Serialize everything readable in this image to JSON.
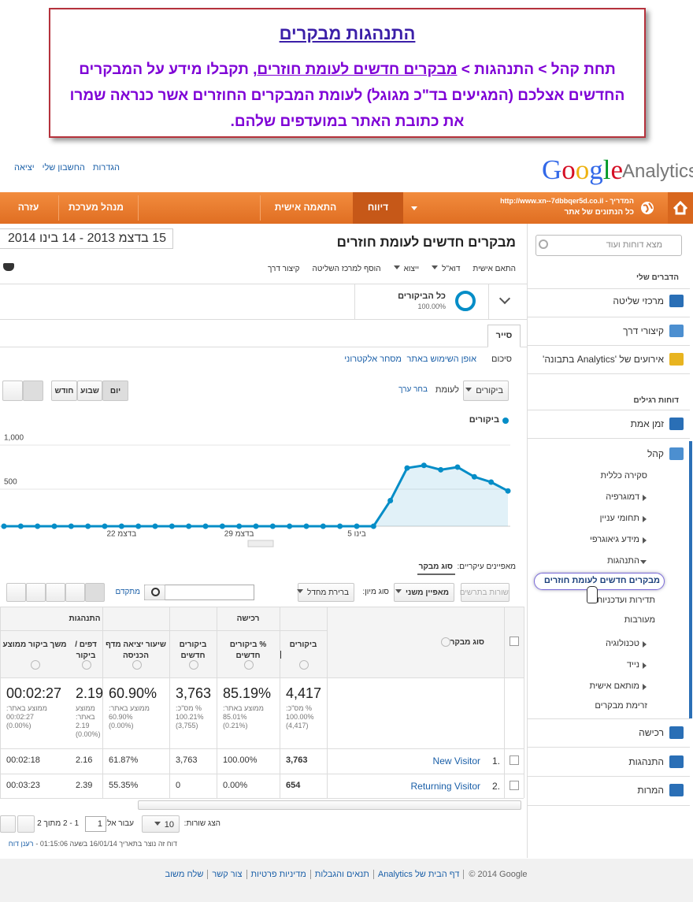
{
  "callout": {
    "title": "התנהגות מבקרים",
    "text_pre": "תחת קהל > התנהגות > ",
    "text_link": "מבקרים חדשים לעומת חוזרים",
    "text_post": ", תקבלו מידע על המבקרים החדשים אצלכם (המגיעים בד\"כ מגוגל) לעומת המבקרים החוזרים אשר כנראה שמרו את כתובת האתר במועדפים שלהם."
  },
  "header": {
    "logo_google": "Google",
    "logo_analytics": "Analytics",
    "links": [
      "הגדרות",
      "החשבון שלי",
      "יציאה"
    ]
  },
  "nav": {
    "site_url": "http://www.xn--7dbbqer5d.co.il - המדריך",
    "site_name": "כל הנתונים של אתר",
    "tabs": [
      "דיווח",
      "התאמה אישית",
      "מנהל מערכת",
      "עזרה"
    ]
  },
  "sidebar": {
    "search_placeholder": "מצא דוחות ועוד",
    "my_stuff_heading": "הדברים שלי",
    "my_stuff": [
      "מרכזי שליטה",
      "קיצורי דרך",
      "אירועים של 'Analytics בתבונה'"
    ],
    "standard_heading": "דוחות רגילים",
    "standard": [
      "זמן אמת",
      "קהל",
      "רכישה",
      "התנהגות",
      "המרות"
    ],
    "audience": [
      "סקירה כללית",
      "דמוגרפיה",
      "תחומי עניין",
      "מידע גיאוגרפי",
      "התנהגות",
      "מבקרים חדשים לעומת חוזרים",
      "תדירות ועדכניות",
      "מעורבות",
      "טכנולוגיה",
      "נייד",
      "מותאם אישית",
      "זרימת מבקרים"
    ]
  },
  "report": {
    "title": "מבקרים חדשים לעומת חוזרים",
    "date_range": "15 בדצמ 2013 - 14 בינו 2014",
    "toolbar": [
      "התאם אישית",
      "דוא\"ל",
      "ייצוא",
      "הוסף למרכז השליטה",
      "קיצור דרך"
    ],
    "segment_name": "כל הביקורים",
    "segment_pct": "100.00%",
    "tab": "סייר",
    "subtabs": [
      "סיכום",
      "אופן השימוש באתר",
      "מסחר אלקטרוני"
    ],
    "metric": "ביקורים",
    "versus": "לעומת",
    "choose_metric": "בחר ערך",
    "periods": [
      "יום",
      "שבוע",
      "חודש"
    ]
  },
  "chart_data": {
    "type": "line",
    "categories": [
      null,
      null,
      null,
      null,
      null,
      null,
      null,
      "22 בדצמ",
      null,
      null,
      null,
      null,
      null,
      null,
      "29 בדצמ",
      null,
      null,
      null,
      null,
      null,
      null,
      "5 בינו",
      null,
      null,
      null,
      null,
      null,
      null,
      null,
      null,
      null
    ],
    "series": [
      {
        "name": "ביקורים",
        "color": "#058dc7",
        "values": [
          0,
          0,
          0,
          0,
          0,
          0,
          0,
          0,
          0,
          0,
          0,
          0,
          0,
          0,
          0,
          0,
          0,
          0,
          0,
          0,
          0,
          0,
          0,
          290,
          660,
          690,
          640,
          670,
          560,
          500,
          400
        ]
      }
    ],
    "ylim": [
      0,
      1000
    ],
    "yticks": [
      500,
      {
        "value": 1000,
        "label": "1,000"
      }
    ]
  },
  "table": {
    "primary_label": "מאפיינים עיקריים:",
    "primary_value": "סוג מבקר",
    "controls": [
      "שורות בתרשים",
      "מאפיין משני",
      "סוג מיון:",
      "ברירת מחדל",
      "מתקדם"
    ],
    "groups": [
      "רכישה",
      "התנהגות"
    ],
    "name_header": "סוג מבקר",
    "headers": [
      "ביקורים",
      "% ביקורים חדשים",
      "ביקורים חדשים",
      "שיעור יציאה מדף הכניסה",
      "דפים / ביקור",
      "משך ביקור ממוצע"
    ],
    "totals": [
      {
        "value": "4,417",
        "sub": [
          "% מס\"כ:",
          "100.00%",
          "(4,417)"
        ]
      },
      {
        "value": "85.19%",
        "sub": [
          "ממוצע באתר:",
          "85.01%",
          "(0.21%)"
        ]
      },
      {
        "value": "3,763",
        "sub": [
          "% מס\"כ:",
          "100.21%",
          "(3,755)"
        ]
      },
      {
        "value": "60.90%",
        "sub": [
          "ממוצע באתר:",
          "60.90%",
          "(0.00%)"
        ]
      },
      {
        "value": "2.19",
        "sub": [
          "ממוצע",
          "באתר:",
          "2.19",
          "(0.00%)"
        ]
      },
      {
        "value": "00:02:27",
        "sub": [
          "ממוצע באתר:",
          "00:02:27",
          "(0.00%)"
        ]
      }
    ],
    "rows": [
      {
        "num": "1.",
        "name": "New Visitor",
        "cells": [
          "3,763",
          "100.00%",
          "3,763",
          "61.87%",
          "2.16",
          "00:02:18"
        ]
      },
      {
        "num": "2.",
        "name": "Returning Visitor",
        "cells": [
          "654",
          "0.00%",
          "0",
          "55.35%",
          "2.39",
          "00:03:23"
        ]
      }
    ],
    "show_rows": "הצג שורות:",
    "rows_count": "10",
    "goto": "עבור אל:",
    "goto_value": "1",
    "range": "1 - 2 מתוך 2",
    "note": "דוח זה נוצר בתאריך 16/01/14 בשעה 01:15:06 -",
    "refresh": "רענן דוח"
  },
  "footer": {
    "copyright": "© 2014 Google",
    "links": [
      "דף הבית של Analytics",
      "תנאים והגבלות",
      "מדיניות פרטיות",
      "צור קשר",
      "שלח משוב"
    ]
  }
}
